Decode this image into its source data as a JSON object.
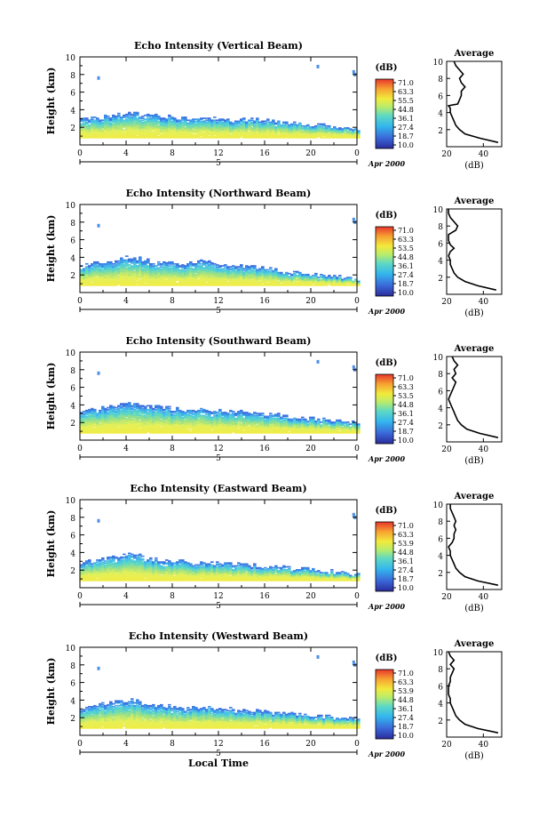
{
  "chart_data": [
    {
      "type": "heatmap",
      "title": "Echo Intensity (Vertical Beam)",
      "ylabel": "Height (km)",
      "xlabel": "",
      "xlim": [
        0,
        24
      ],
      "ylim": [
        0,
        10
      ],
      "xticks": [
        "0",
        "4",
        "8",
        "12",
        "16",
        "20",
        "0"
      ],
      "yticks": [
        "2",
        "4",
        "6",
        "8",
        "10"
      ],
      "date_marker": "5",
      "date_label": "Apr 2000",
      "cloud_top_km": [
        2.9,
        3.0,
        3.1,
        3.3,
        3.6,
        3.5,
        3.3,
        3.2,
        3.1,
        3.0,
        3.0,
        2.9,
        2.9,
        2.8,
        2.8,
        2.9,
        2.8,
        2.6,
        2.5,
        2.4,
        2.3,
        2.2,
        2.1,
        2.0,
        1.8
      ],
      "colorbar": {
        "unit": "(dB)",
        "ticks": [
          "71.0",
          "63.3",
          "55.5",
          "44.8",
          "36.1",
          "27.4",
          "18.7",
          "10.0"
        ]
      },
      "average_profile": {
        "title": "Average",
        "xlabel": "(dB)",
        "xlim": [
          20,
          50
        ],
        "xticks": [
          "20",
          "40"
        ],
        "ylim": [
          0,
          10
        ],
        "yticks": [
          "2",
          "4",
          "6",
          "8",
          "10"
        ],
        "heights": [
          0.5,
          1.0,
          1.5,
          2.0,
          2.5,
          3.0,
          3.5,
          4.0,
          4.5,
          4.8,
          5.0,
          5.5,
          6.0,
          6.5,
          7.0,
          7.5,
          8.0,
          8.5,
          9.0,
          9.5,
          10.0
        ],
        "values": [
          48,
          38,
          30,
          27,
          25,
          24,
          23,
          22,
          22,
          21,
          26,
          27,
          28,
          28,
          30,
          28,
          27,
          29,
          27,
          25,
          24
        ]
      }
    },
    {
      "type": "heatmap",
      "title": "Echo Intensity (Northward Beam)",
      "ylabel": "Height (km)",
      "xlabel": "",
      "xlim": [
        0,
        24
      ],
      "ylim": [
        0,
        10
      ],
      "xticks": [
        "0",
        "4",
        "8",
        "12",
        "16",
        "20",
        "0"
      ],
      "yticks": [
        "2",
        "4",
        "6",
        "8",
        "10"
      ],
      "date_marker": "5",
      "date_label": "Apr 2000",
      "cloud_top_km": [
        3.0,
        3.2,
        3.4,
        3.6,
        4.0,
        3.8,
        3.5,
        3.4,
        3.2,
        3.1,
        3.6,
        3.4,
        3.1,
        3.0,
        2.9,
        2.8,
        2.7,
        2.5,
        2.3,
        2.2,
        2.0,
        1.9,
        1.8,
        1.6,
        1.4
      ],
      "colorbar": {
        "unit": "(dB)",
        "ticks": [
          "71.0",
          "63.3",
          "53.5",
          "44.8",
          "36.1",
          "27.4",
          "18.7",
          "10.0"
        ]
      },
      "average_profile": {
        "title": "Average",
        "xlabel": "(dB)",
        "xlim": [
          20,
          50
        ],
        "xticks": [
          "20",
          "40"
        ],
        "ylim": [
          0,
          10
        ],
        "yticks": [
          "2",
          "4",
          "6",
          "8",
          "10"
        ],
        "heights": [
          0.5,
          1.0,
          1.5,
          2.0,
          2.5,
          3.0,
          3.5,
          4.0,
          4.5,
          5.0,
          5.4,
          5.8,
          6.3,
          7.0,
          7.5,
          8.0,
          8.5,
          9.0,
          9.5,
          10.0
        ],
        "values": [
          47,
          37,
          30,
          26,
          24,
          23,
          22,
          22,
          21,
          22,
          24,
          22,
          21,
          21,
          25,
          26,
          24,
          22,
          21,
          21
        ]
      }
    },
    {
      "type": "heatmap",
      "title": "Echo Intensity (Southward Beam)",
      "ylabel": "Height (km)",
      "xlabel": "",
      "xlim": [
        0,
        24
      ],
      "ylim": [
        0,
        10
      ],
      "xticks": [
        "0",
        "4",
        "8",
        "12",
        "16",
        "20",
        "0"
      ],
      "yticks": [
        "2",
        "4",
        "6",
        "8",
        "10"
      ],
      "date_marker": "5",
      "date_label": "Apr 2000",
      "cloud_top_km": [
        3.1,
        3.4,
        3.7,
        3.9,
        4.2,
        4.0,
        3.8,
        3.6,
        3.5,
        3.4,
        3.5,
        3.4,
        3.3,
        3.2,
        3.1,
        3.0,
        2.9,
        2.8,
        2.6,
        2.5,
        2.4,
        2.3,
        2.2,
        2.0,
        1.9
      ],
      "colorbar": {
        "unit": "(dB)",
        "ticks": [
          "71.0",
          "63.3",
          "53.5",
          "44.8",
          "36.1",
          "27.4",
          "18.7",
          "10.0"
        ]
      },
      "average_profile": {
        "title": "Average",
        "xlabel": "(dB)",
        "xlim": [
          20,
          50
        ],
        "xticks": [
          "20",
          "40"
        ],
        "ylim": [
          0,
          10
        ],
        "yticks": [
          "2",
          "4",
          "6",
          "8",
          "10"
        ],
        "heights": [
          0.5,
          1.0,
          1.5,
          2.0,
          2.5,
          3.0,
          3.5,
          4.0,
          4.5,
          5.0,
          5.5,
          6.0,
          6.5,
          7.0,
          7.5,
          8.0,
          8.5,
          9.0,
          9.5,
          10.0
        ],
        "values": [
          48,
          38,
          31,
          28,
          26,
          25,
          24,
          23,
          22,
          21,
          22,
          23,
          24,
          25,
          23,
          25,
          24,
          26,
          24,
          23
        ]
      }
    },
    {
      "type": "heatmap",
      "title": "Echo Intensity (Eastward Beam)",
      "ylabel": "Height (km)",
      "xlabel": "",
      "xlim": [
        0,
        24
      ],
      "ylim": [
        0,
        10
      ],
      "xticks": [
        "0",
        "4",
        "8",
        "12",
        "16",
        "20",
        "0"
      ],
      "yticks": [
        "2",
        "4",
        "6",
        "8",
        "10"
      ],
      "date_marker": "5",
      "date_label": "Apr 2000",
      "cloud_top_km": [
        2.8,
        3.0,
        3.3,
        3.5,
        3.8,
        3.6,
        3.3,
        3.1,
        3.0,
        2.9,
        2.8,
        2.8,
        2.7,
        2.6,
        2.6,
        2.5,
        2.4,
        2.3,
        2.2,
        2.1,
        2.0,
        1.9,
        1.8,
        1.6,
        1.5
      ],
      "colorbar": {
        "unit": "(dB)",
        "ticks": [
          "71.0",
          "63.3",
          "53.9",
          "44.8",
          "36.1",
          "27.4",
          "18.7",
          "10.0"
        ]
      },
      "average_profile": {
        "title": "Average",
        "xlabel": "(dB)",
        "xlim": [
          20,
          50
        ],
        "xticks": [
          "20",
          "40"
        ],
        "ylim": [
          0,
          10
        ],
        "yticks": [
          "2",
          "4",
          "6",
          "8",
          "10"
        ],
        "heights": [
          0.5,
          1.0,
          1.5,
          2.0,
          2.5,
          3.0,
          3.5,
          4.0,
          4.5,
          5.0,
          5.5,
          6.0,
          6.5,
          7.0,
          7.5,
          8.0,
          8.5,
          9.0,
          9.5,
          10.0
        ],
        "values": [
          48,
          37,
          30,
          27,
          25,
          24,
          23,
          22,
          22,
          21,
          23,
          24,
          24,
          25,
          24,
          25,
          24,
          23,
          22,
          22
        ]
      }
    },
    {
      "type": "heatmap",
      "title": "Echo Intensity (Westward Beam)",
      "ylabel": "Height (km)",
      "xlabel": "Local Time",
      "xlim": [
        0,
        24
      ],
      "ylim": [
        0,
        10
      ],
      "xticks": [
        "0",
        "4",
        "8",
        "12",
        "16",
        "20",
        "0"
      ],
      "yticks": [
        "2",
        "4",
        "6",
        "8",
        "10"
      ],
      "date_marker": "5",
      "date_label": "Apr 2000",
      "cloud_top_km": [
        3.0,
        3.2,
        3.5,
        3.7,
        4.0,
        3.8,
        3.5,
        3.3,
        3.2,
        3.0,
        3.2,
        3.1,
        3.0,
        2.9,
        2.8,
        2.7,
        2.6,
        2.5,
        2.4,
        2.3,
        2.2,
        2.1,
        2.0,
        1.9,
        1.8
      ],
      "colorbar": {
        "unit": "(dB)",
        "ticks": [
          "71.0",
          "63.3",
          "53.9",
          "44.8",
          "36.1",
          "27.4",
          "18.7",
          "10.0"
        ]
      },
      "average_profile": {
        "title": "Average",
        "xlabel": "(dB)",
        "xlim": [
          20,
          50
        ],
        "xticks": [
          "20",
          "40"
        ],
        "ylim": [
          0,
          10
        ],
        "yticks": [
          "2",
          "4",
          "6",
          "8",
          "10"
        ],
        "heights": [
          0.5,
          1.0,
          1.5,
          2.0,
          2.5,
          3.0,
          3.5,
          4.0,
          4.5,
          5.0,
          5.5,
          6.0,
          6.5,
          7.0,
          7.5,
          8.0,
          8.5,
          9.0,
          9.5,
          10.0
        ],
        "values": [
          48,
          37,
          30,
          27,
          25,
          24,
          23,
          22,
          22,
          21,
          21,
          21,
          22,
          22,
          23,
          24,
          22,
          24,
          22,
          21
        ]
      }
    }
  ]
}
